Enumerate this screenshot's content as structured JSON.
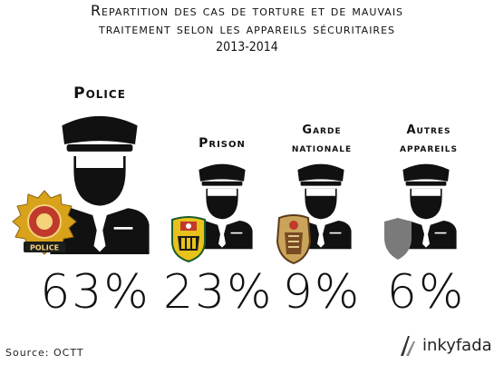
{
  "chart_data": {
    "type": "pictograph",
    "title": "Repartition des cas de torture et de mauvais traitement selon les appareils sécuritaires",
    "subtitle": "2013-2014",
    "categories": [
      "Police",
      "Prison",
      "Garde nationale",
      "Autres appareils"
    ],
    "values": [
      63,
      23,
      9,
      6
    ],
    "value_labels": [
      "63%",
      "23%",
      "9%",
      "6%"
    ],
    "unit": "%"
  },
  "header": {
    "title_line1": "Repartition des cas de torture et de mauvais",
    "title_line2": "traitement selon les appareils sécuritaires",
    "subtitle": "2013-2014"
  },
  "categories": [
    {
      "label_line1": "Police",
      "label_line2": "",
      "value": "63%"
    },
    {
      "label_line1": "Prison",
      "label_line2": "",
      "value": "23%"
    },
    {
      "label_line1": "Garde",
      "label_line2": "nationale",
      "value": "9%"
    },
    {
      "label_line1": "Autres",
      "label_line2": "appareils",
      "value": "6%"
    }
  ],
  "badges": {
    "police_text": "POLICE"
  },
  "footer": {
    "source": "Source: OCTT",
    "brand": "inkyfada"
  },
  "colors": {
    "figure": "#111111",
    "badge_gold": "#d9a21b",
    "badge_red": "#c0392b",
    "shield_gray": "#7a7a7a"
  }
}
